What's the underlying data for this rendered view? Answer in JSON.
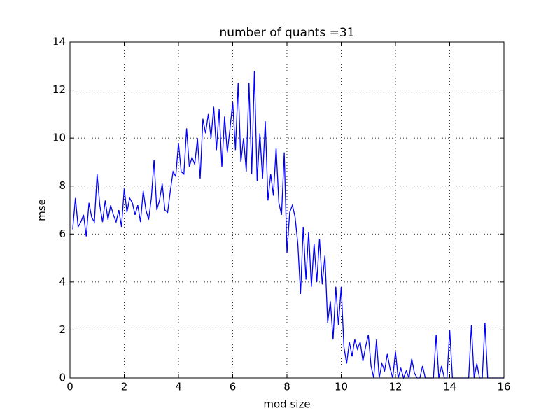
{
  "chart_data": {
    "type": "line",
    "title": "number of quants =31",
    "xlabel": "mod size",
    "ylabel": "mse",
    "x": [
      0.1,
      0.2,
      0.3,
      0.4,
      0.5,
      0.6,
      0.7,
      0.8,
      0.9,
      1.0,
      1.1,
      1.2,
      1.3,
      1.4,
      1.5,
      1.6,
      1.7,
      1.8,
      1.9,
      2.0,
      2.1,
      2.2,
      2.3,
      2.4,
      2.5,
      2.6,
      2.7,
      2.8,
      2.9,
      3.0,
      3.1,
      3.2,
      3.3,
      3.4,
      3.5,
      3.6,
      3.7,
      3.8,
      3.9,
      4.0,
      4.1,
      4.2,
      4.3,
      4.4,
      4.5,
      4.6,
      4.7,
      4.8,
      4.9,
      5.0,
      5.1,
      5.2,
      5.3,
      5.4,
      5.5,
      5.6,
      5.7,
      5.8,
      5.9,
      6.0,
      6.1,
      6.2,
      6.3,
      6.4,
      6.5,
      6.6,
      6.7,
      6.8,
      6.9,
      7.0,
      7.1,
      7.2,
      7.3,
      7.4,
      7.5,
      7.6,
      7.7,
      7.8,
      7.9,
      8.0,
      8.1,
      8.2,
      8.3,
      8.4,
      8.5,
      8.6,
      8.7,
      8.8,
      8.9,
      9.0,
      9.1,
      9.2,
      9.3,
      9.4,
      9.5,
      9.6,
      9.7,
      9.8,
      9.9,
      10.0,
      10.1,
      10.2,
      10.3,
      10.4,
      10.5,
      10.6,
      10.7,
      10.8,
      10.9,
      11.0,
      11.1,
      11.2,
      11.3,
      11.4,
      11.5,
      11.6,
      11.7,
      11.8,
      11.9,
      12.0,
      12.1,
      12.2,
      12.3,
      12.4,
      12.5,
      12.6,
      12.7,
      12.8,
      12.9,
      13.0,
      13.1,
      13.2,
      13.3,
      13.4,
      13.5,
      13.6,
      13.7,
      13.8,
      13.9,
      14.0,
      14.1,
      14.2,
      14.3,
      14.4,
      14.5,
      14.6,
      14.7,
      14.8,
      14.9,
      15.0,
      15.1,
      15.2,
      15.3,
      15.4,
      15.5,
      15.6,
      15.7,
      15.8,
      15.9,
      16.0
    ],
    "series": [
      {
        "color": "#0000ff",
        "values": [
          6.2,
          7.5,
          6.3,
          6.5,
          6.8,
          5.9,
          7.3,
          6.7,
          6.5,
          8.5,
          7.2,
          6.5,
          7.4,
          6.6,
          7.2,
          6.8,
          6.5,
          7.0,
          6.3,
          7.9,
          6.9,
          7.5,
          7.3,
          6.8,
          7.2,
          6.5,
          7.8,
          7.0,
          6.6,
          7.5,
          9.1,
          7.0,
          7.4,
          8.1,
          7.0,
          6.9,
          7.8,
          8.6,
          8.4,
          9.8,
          8.6,
          8.5,
          10.4,
          8.8,
          9.2,
          8.9,
          10.0,
          8.3,
          10.8,
          10.2,
          11.0,
          10.0,
          11.3,
          9.5,
          11.2,
          8.8,
          10.9,
          9.4,
          10.4,
          11.5,
          9.5,
          12.3,
          9.0,
          10.0,
          8.6,
          12.3,
          8.5,
          12.8,
          8.2,
          10.2,
          8.3,
          10.7,
          7.4,
          8.5,
          7.6,
          9.6,
          7.3,
          6.8,
          9.4,
          5.2,
          6.9,
          7.2,
          6.7,
          5.6,
          3.5,
          6.3,
          4.1,
          6.1,
          3.8,
          5.6,
          4.0,
          5.8,
          3.9,
          5.1,
          2.3,
          3.2,
          1.6,
          3.8,
          2.2,
          3.8,
          1.3,
          0.6,
          1.5,
          0.9,
          1.6,
          1.2,
          1.5,
          0.7,
          1.3,
          1.8,
          0.5,
          0,
          1.6,
          0,
          0.6,
          0.3,
          1.0,
          0.4,
          0,
          1.1,
          0,
          0.4,
          0,
          0.3,
          0,
          0.8,
          0.2,
          0,
          0,
          0.5,
          0,
          0,
          0,
          0,
          1.8,
          0,
          0.5,
          0,
          0,
          2.0,
          0,
          0,
          0,
          0,
          0,
          0,
          0,
          2.2,
          0,
          0.6,
          0,
          0,
          2.3,
          0,
          0,
          0,
          0,
          0,
          0,
          0
        ]
      }
    ],
    "xlim": [
      0,
      16
    ],
    "xticks": [
      0,
      2,
      4,
      6,
      8,
      10,
      12,
      14,
      16
    ],
    "ylim": [
      0,
      14
    ],
    "yticks": [
      0,
      2,
      4,
      6,
      8,
      10,
      12,
      14
    ],
    "grid": true
  }
}
